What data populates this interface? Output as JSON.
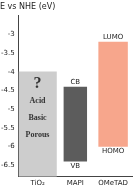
{
  "chart_data": {
    "type": "bar",
    "title": "E vs NHE (eV)",
    "categories": [
      "TiO₂",
      "MAPI",
      "OMeTAD"
    ],
    "values": [
      [
        -6.8,
        -4.0
      ],
      [
        -6.4,
        -4.4
      ],
      [
        -6.0,
        -3.2
      ]
    ],
    "colors": [
      "#cdcdcd",
      "#5c5c5c",
      "#f7a68c"
    ],
    "inner_labels": [
      "?",
      "Acid",
      "Basic",
      "Porous"
    ],
    "band_labels": [
      null,
      {
        "top": "CB",
        "bottom": "VB"
      },
      {
        "top": "LUMO",
        "bottom": "HOMO"
      }
    ],
    "ylim": [
      -6.8,
      -2.5
    ],
    "yticks": [
      -6.5,
      -6,
      -5.5,
      -5,
      -4.5,
      -4,
      -3.5,
      -3
    ],
    "grid": false,
    "stacked": false
  }
}
